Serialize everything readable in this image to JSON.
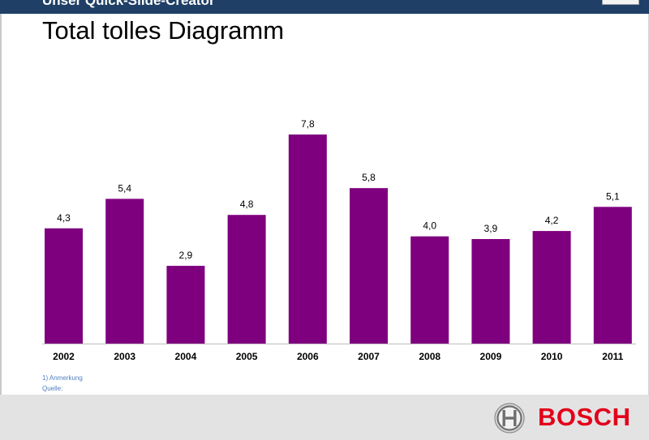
{
  "header": {
    "title": "Unser Quick-Slide-Creator"
  },
  "slide": {
    "title": "Total tolles Diagramm",
    "footnotes": [
      "1) Anmerkung",
      "Quelle:"
    ]
  },
  "logo": {
    "text": "BOSCH",
    "icon": "bosch-armature-icon"
  },
  "colors": {
    "bar": "#7f007f",
    "header": "#1f3f66",
    "footer": "#e3e3e3",
    "logo": "#e2001a",
    "footnote": "#4f7fbf"
  },
  "chart_data": {
    "type": "bar",
    "categories": [
      "2002",
      "2003",
      "2004",
      "2005",
      "2006",
      "2007",
      "2008",
      "2009",
      "2010",
      "2011"
    ],
    "values": [
      4.3,
      5.4,
      2.9,
      4.8,
      7.8,
      5.8,
      4.0,
      3.9,
      4.2,
      5.1
    ],
    "value_labels": [
      "4,3",
      "5,4",
      "2,9",
      "4,8",
      "7,8",
      "5,8",
      "4,0",
      "3,9",
      "4,2",
      "5,1"
    ],
    "title": "",
    "xlabel": "",
    "ylabel": "",
    "ylim": [
      0,
      7.8
    ],
    "grid": false,
    "legend": "none"
  }
}
